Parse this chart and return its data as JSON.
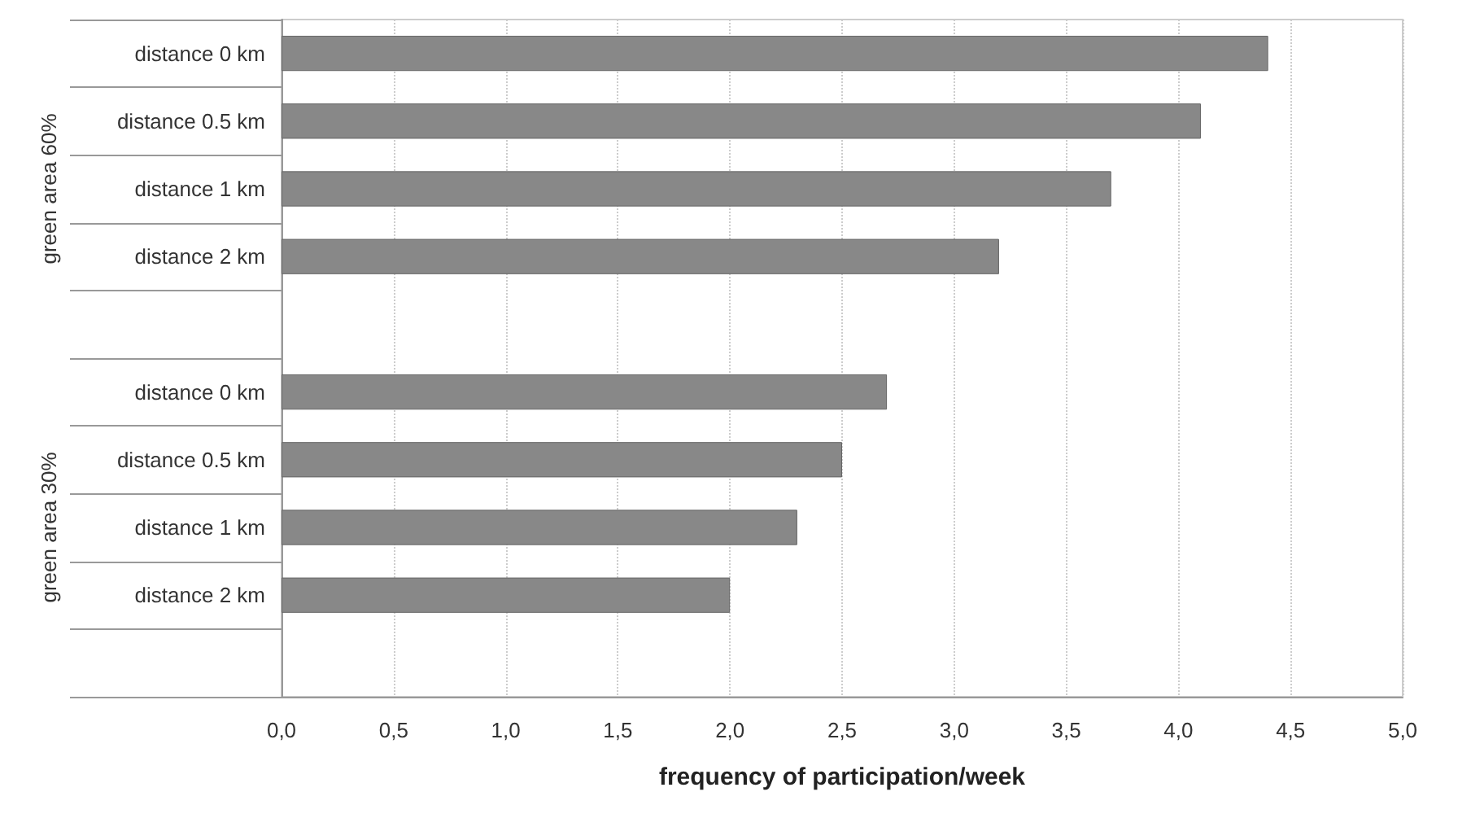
{
  "chart_data": {
    "type": "bar",
    "orientation": "horizontal",
    "xlabel": "frequency of participation/week",
    "categories": [
      "distance 0 km",
      "distance 0.5 km",
      "distance 1 km",
      "distance 2 km",
      null,
      "distance 0 km",
      "distance 0.5 km",
      "distance 1 km",
      "distance 2 km",
      null
    ],
    "values": [
      4.4,
      4.1,
      3.7,
      3.2,
      null,
      2.7,
      2.5,
      2.3,
      2.0,
      null
    ],
    "color": "#888888",
    "xlim": [
      0,
      5
    ],
    "xticks": [
      {
        "value": 0,
        "label": "0,0"
      },
      {
        "value": 0.5,
        "label": "0,5"
      },
      {
        "value": 1,
        "label": "1,0"
      },
      {
        "value": 1.5,
        "label": "1,5"
      },
      {
        "value": 2,
        "label": "2,0"
      },
      {
        "value": 2.5,
        "label": "2,5"
      },
      {
        "value": 3,
        "label": "3,0"
      },
      {
        "value": 3.5,
        "label": "3,5"
      },
      {
        "value": 4,
        "label": "4,0"
      },
      {
        "value": 4.5,
        "label": "4,5"
      },
      {
        "value": 5,
        "label": "5,0"
      }
    ],
    "grid": "x",
    "annotations": [
      "green area 60%",
      "green area 30%"
    ]
  }
}
